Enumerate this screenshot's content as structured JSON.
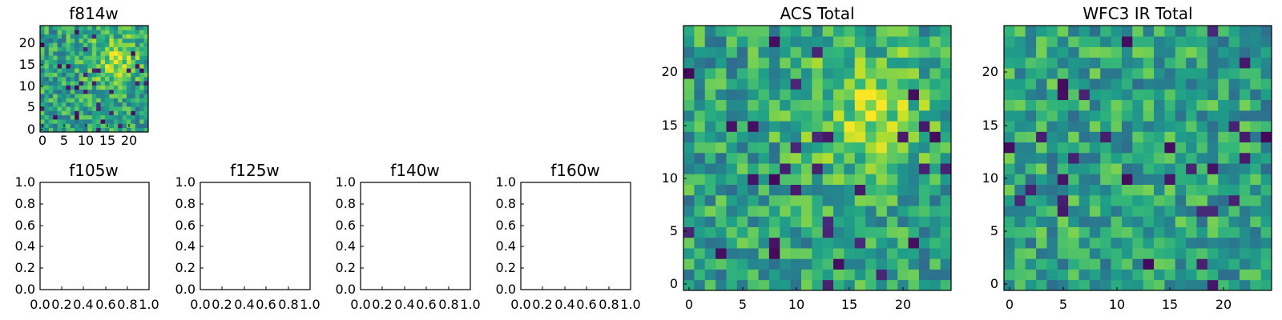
{
  "chart_data": [
    {
      "type": "heatmap",
      "title": "f814w",
      "xlim": [
        -0.5,
        24.5
      ],
      "ylim": [
        -0.5,
        24.5
      ],
      "xticks": [
        0,
        5,
        10,
        15,
        20
      ],
      "yticks": [
        0,
        5,
        10,
        15,
        20
      ],
      "xticklabels": [
        "0",
        "5",
        "10",
        "15",
        "20"
      ],
      "yticklabels": [
        "0",
        "5",
        "10",
        "15",
        "20"
      ],
      "grid": false,
      "colormap": "viridis",
      "nx": 25,
      "ny": 25,
      "values_source": "approximate per-pixel noise (uniform random, brighter cluster near x 12-22, y 10-22)",
      "seed": 814
    },
    {
      "type": "scatter",
      "title": "f105w",
      "xlim": [
        0,
        1
      ],
      "ylim": [
        0,
        1
      ],
      "xticklabels": [
        "0.0",
        "0.2",
        "0.4",
        "0.6",
        "0.8",
        "1.0"
      ],
      "yticklabels": [
        "0.0",
        "0.2",
        "0.4",
        "0.6",
        "0.8",
        "1.0"
      ],
      "grid": false,
      "empty": true
    },
    {
      "type": "scatter",
      "title": "f125w",
      "xlim": [
        0,
        1
      ],
      "ylim": [
        0,
        1
      ],
      "xticklabels": [
        "0.0",
        "0.2",
        "0.4",
        "0.6",
        "0.8",
        "1.0"
      ],
      "yticklabels": [
        "0.0",
        "0.2",
        "0.4",
        "0.6",
        "0.8",
        "1.0"
      ],
      "grid": false,
      "empty": true
    },
    {
      "type": "scatter",
      "title": "f140w",
      "xlim": [
        0,
        1
      ],
      "ylim": [
        0,
        1
      ],
      "xticklabels": [
        "0.0",
        "0.2",
        "0.4",
        "0.6",
        "0.8",
        "1.0"
      ],
      "yticklabels": [
        "0.0",
        "0.2",
        "0.4",
        "0.6",
        "0.8",
        "1.0"
      ],
      "grid": false,
      "empty": true
    },
    {
      "type": "scatter",
      "title": "f160w",
      "xlim": [
        0,
        1
      ],
      "ylim": [
        0,
        1
      ],
      "xticklabels": [
        "0.0",
        "0.2",
        "0.4",
        "0.6",
        "0.8",
        "1.0"
      ],
      "yticklabels": [
        "0.0",
        "0.2",
        "0.4",
        "0.6",
        "0.8",
        "1.0"
      ],
      "grid": false,
      "empty": true
    },
    {
      "type": "heatmap",
      "title": "ACS Total",
      "xlim": [
        -0.5,
        24.5
      ],
      "ylim": [
        -0.5,
        24.5
      ],
      "xticks": [
        0,
        5,
        10,
        15,
        20
      ],
      "yticks": [
        0,
        5,
        10,
        15,
        20
      ],
      "xticklabels": [
        "0",
        "5",
        "10",
        "15",
        "20"
      ],
      "yticklabels": [
        "0",
        "5",
        "10",
        "15",
        "20"
      ],
      "grid": false,
      "colormap": "viridis",
      "nx": 25,
      "ny": 25,
      "values_source": "approximate per-pixel noise (uniform random, brighter cluster near x 12-22, y 10-22)",
      "seed": 814
    },
    {
      "type": "heatmap",
      "title": "WFC3 IR Total",
      "xlim": [
        -0.5,
        24.5
      ],
      "ylim": [
        -0.5,
        24.5
      ],
      "xticks": [
        0,
        5,
        10,
        15,
        20
      ],
      "yticks": [
        0,
        5,
        10,
        15,
        20
      ],
      "xticklabels": [
        "0",
        "5",
        "10",
        "15",
        "20"
      ],
      "yticklabels": [
        "0",
        "5",
        "10",
        "15",
        "20"
      ],
      "grid": false,
      "colormap": "viridis",
      "nx": 25,
      "ny": 25,
      "values_source": "approximate per-pixel noise (uniform random)",
      "seed": 3
    }
  ]
}
